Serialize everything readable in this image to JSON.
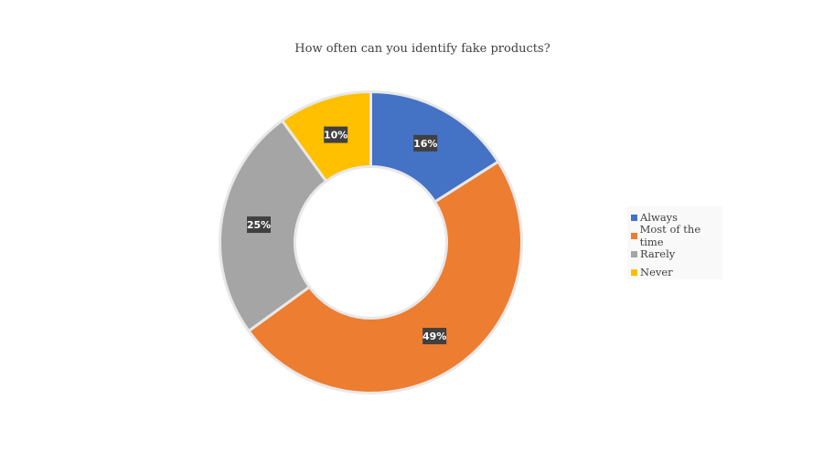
{
  "chart_data": {
    "type": "pie",
    "variant": "donut",
    "title": "How often can you identify fake products?",
    "categories": [
      "Always",
      "Most of the time",
      "Rarely",
      "Never"
    ],
    "values": [
      16,
      49,
      25,
      10
    ],
    "labels": [
      "16%",
      "49%",
      "25%",
      "10%"
    ],
    "colors": [
      "#4472c4",
      "#ed7d31",
      "#a5a5a5",
      "#ffc000"
    ],
    "legend_position": "right"
  }
}
